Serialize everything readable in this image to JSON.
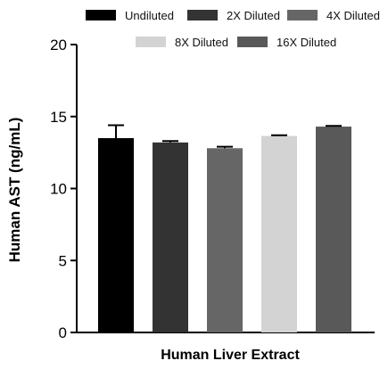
{
  "chart_data": {
    "type": "bar",
    "xlabel": "Human Liver Extract",
    "ylabel": "Human AST (ng/mL)",
    "ylim": [
      0,
      20
    ],
    "yticks": [
      0,
      5,
      10,
      15,
      20
    ],
    "grid": false,
    "legend_position": "top",
    "series": [
      {
        "name": "Undiluted",
        "value": 13.5,
        "error": 0.9,
        "color": "#000000"
      },
      {
        "name": "2X Diluted",
        "value": 13.2,
        "error": 0.1,
        "color": "#333333"
      },
      {
        "name": "4X Diluted",
        "value": 12.8,
        "error": 0.1,
        "color": "#666666"
      },
      {
        "name": "8X Diluted",
        "value": 13.65,
        "error": 0.05,
        "color": "#d3d3d3"
      },
      {
        "name": "16X Diluted",
        "value": 14.3,
        "error": 0.05,
        "color": "#595959"
      }
    ]
  }
}
